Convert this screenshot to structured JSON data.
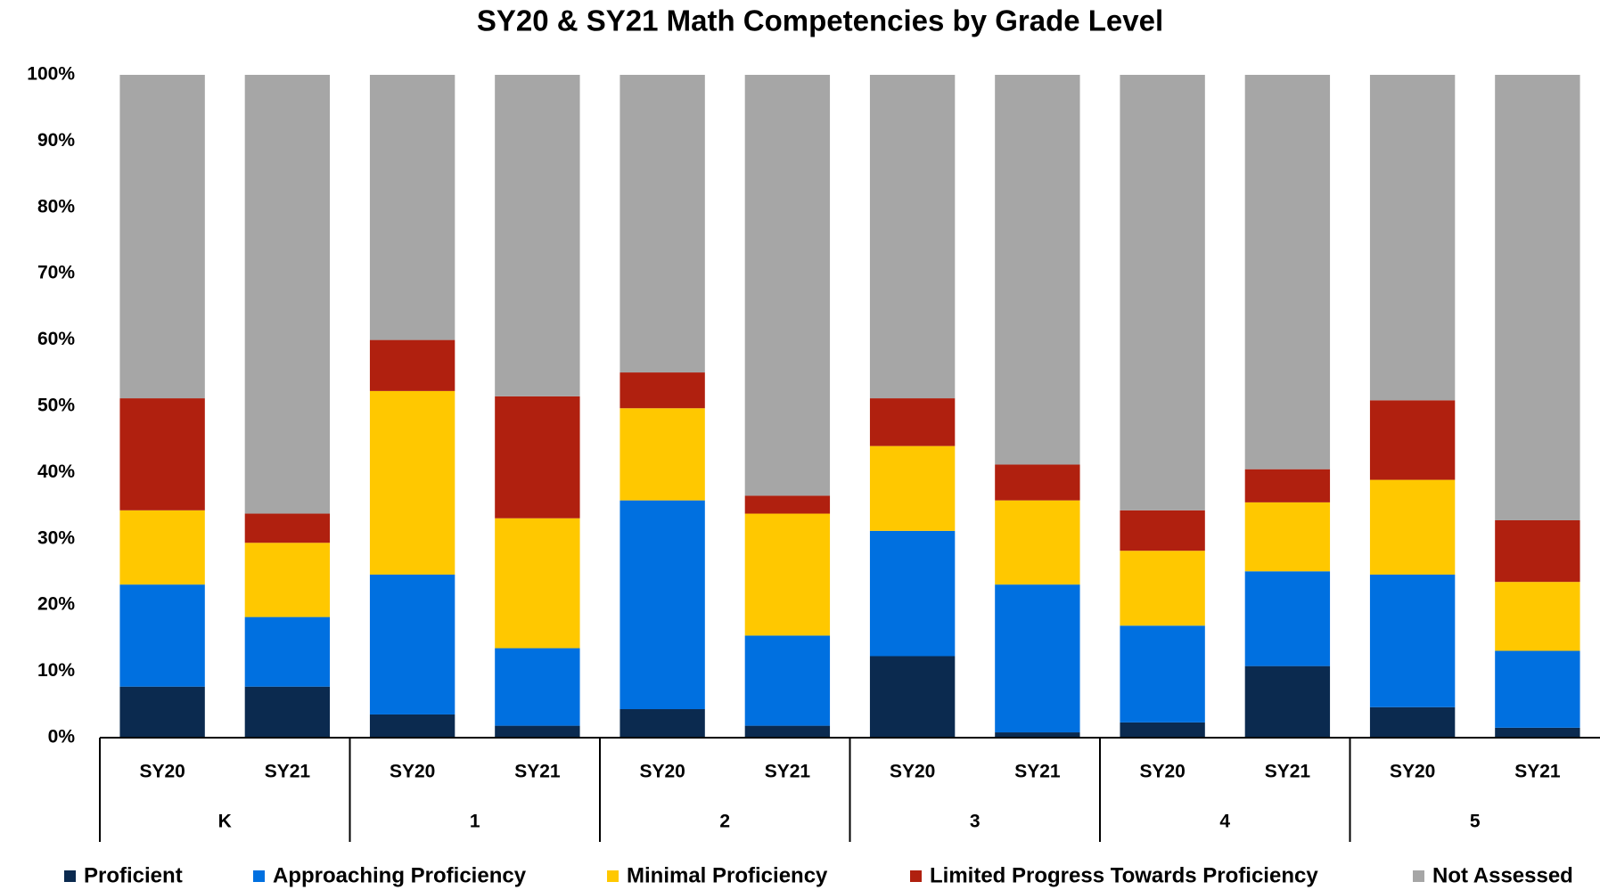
{
  "chart_data": {
    "type": "stacked_bar",
    "title": "SY20 & SY21 Math Competencies by Grade Level",
    "categories": [
      "SY20",
      "SY21",
      "SY20",
      "SY21",
      "SY20",
      "SY21",
      "SY20",
      "SY21",
      "SY20",
      "SY21",
      "SY20",
      "SY21"
    ],
    "groups": [
      "K",
      "1",
      "2",
      "3",
      "4",
      "5"
    ],
    "series": [
      {
        "name": "Proficient",
        "color": "#0b2a4f",
        "values": [
          7.7,
          7.7,
          3.5,
          1.8,
          4.3,
          1.8,
          12.3,
          0.8,
          2.3,
          10.8,
          4.6,
          1.5
        ]
      },
      {
        "name": "Approaching Proficiency",
        "color": "#0070e0",
        "values": [
          15.4,
          10.5,
          21.1,
          11.7,
          31.5,
          13.6,
          18.9,
          22.3,
          14.6,
          14.3,
          20,
          11.6
        ]
      },
      {
        "name": "Minimal Proficiency",
        "color": "#ffc800",
        "values": [
          11.2,
          11.2,
          27.7,
          19.6,
          13.9,
          18.4,
          12.8,
          12.7,
          11.3,
          10.4,
          14.3,
          10.4
        ]
      },
      {
        "name": "Limited Progress Towards Proficiency",
        "color": "#b0200f",
        "values": [
          16.9,
          4.4,
          7.7,
          18.4,
          5.4,
          2.7,
          7.2,
          5.4,
          6.1,
          5,
          12,
          9.3
        ]
      },
      {
        "name": "Not Assessed",
        "color": "#a6a6a6",
        "values": [
          48.8,
          66.2,
          40,
          48.5,
          44.9,
          63.5,
          48.8,
          58.8,
          65.7,
          59.5,
          49.1,
          67.2
        ]
      }
    ],
    "ylim": [
      0,
      100
    ],
    "yticks": [
      {
        "value": 0,
        "label": "0%"
      },
      {
        "value": 10,
        "label": "10%"
      },
      {
        "value": 20,
        "label": "20%"
      },
      {
        "value": 30,
        "label": "30%"
      },
      {
        "value": 40,
        "label": "40%"
      },
      {
        "value": 50,
        "label": "50%"
      },
      {
        "value": 60,
        "label": "60%"
      },
      {
        "value": 70,
        "label": "70%"
      },
      {
        "value": 80,
        "label": "80%"
      },
      {
        "value": 90,
        "label": "90%"
      },
      {
        "value": 100,
        "label": "100%"
      }
    ],
    "legend": "bottom"
  }
}
